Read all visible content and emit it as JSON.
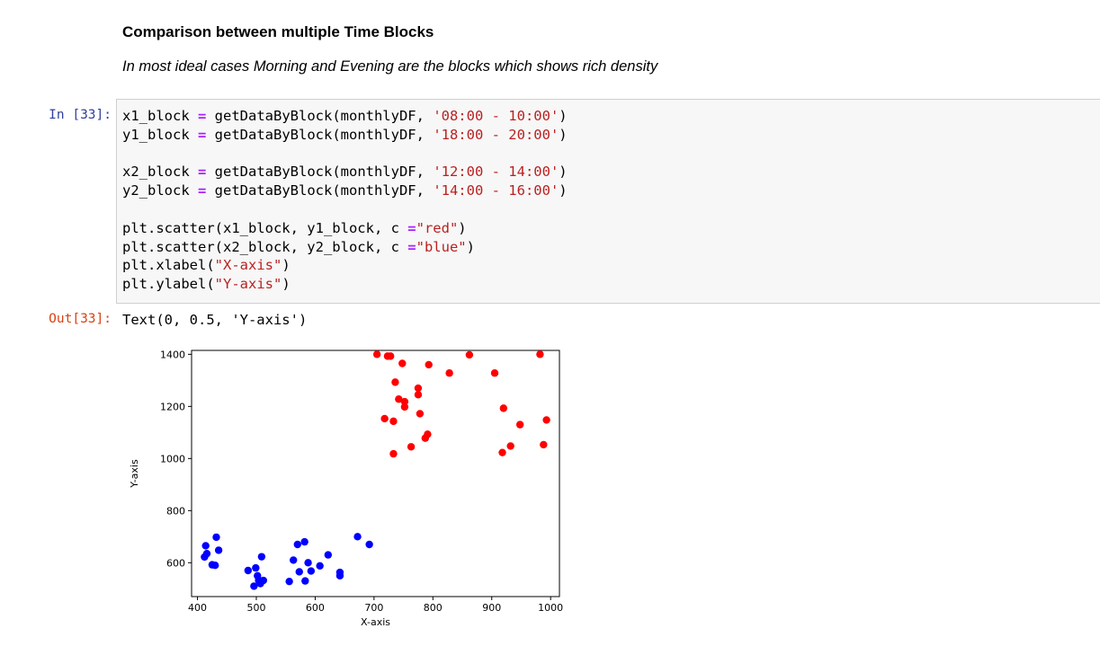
{
  "markdown": {
    "heading": "Comparison between multiple Time Blocks",
    "subtitle": "In most ideal cases Morning and Evening are the blocks which shows rich density"
  },
  "cell": {
    "in_prompt": "In [33]:",
    "out_prompt": "Out[33]:",
    "code_lines": [
      [
        {
          "t": "x1_block "
        },
        {
          "t": "=",
          "c": "kw"
        },
        {
          "t": " getDataByBlock(monthlyDF, "
        },
        {
          "t": "'08:00 - 10:00'",
          "c": "st"
        },
        {
          "t": ")"
        }
      ],
      [
        {
          "t": "y1_block "
        },
        {
          "t": "=",
          "c": "kw"
        },
        {
          "t": " getDataByBlock(monthlyDF, "
        },
        {
          "t": "'18:00 - 20:00'",
          "c": "st"
        },
        {
          "t": ")"
        }
      ],
      [],
      [
        {
          "t": "x2_block "
        },
        {
          "t": "=",
          "c": "kw"
        },
        {
          "t": " getDataByBlock(monthlyDF, "
        },
        {
          "t": "'12:00 - 14:00'",
          "c": "st"
        },
        {
          "t": ")"
        }
      ],
      [
        {
          "t": "y2_block "
        },
        {
          "t": "=",
          "c": "kw"
        },
        {
          "t": " getDataByBlock(monthlyDF, "
        },
        {
          "t": "'14:00 - 16:00'",
          "c": "st"
        },
        {
          "t": ")"
        }
      ],
      [],
      [
        {
          "t": "plt.scatter(x1_block, y1_block, c "
        },
        {
          "t": "=",
          "c": "kw"
        },
        {
          "t": "\"red\"",
          "c": "st"
        },
        {
          "t": ")"
        }
      ],
      [
        {
          "t": "plt.scatter(x2_block, y2_block, c "
        },
        {
          "t": "=",
          "c": "kw"
        },
        {
          "t": "\"blue\"",
          "c": "st"
        },
        {
          "t": ")"
        }
      ],
      [
        {
          "t": "plt.xlabel("
        },
        {
          "t": "\"X-axis\"",
          "c": "st"
        },
        {
          "t": ")"
        }
      ],
      [
        {
          "t": "plt.ylabel("
        },
        {
          "t": "\"Y-axis\"",
          "c": "st"
        },
        {
          "t": ")"
        }
      ]
    ],
    "output_text": "Text(0, 0.5, 'Y-axis')"
  },
  "chart_data": {
    "type": "scatter",
    "xlabel": "X-axis",
    "ylabel": "Y-axis",
    "xlim": [
      390,
      1015
    ],
    "ylim": [
      470,
      1415
    ],
    "xticks": [
      400,
      500,
      600,
      700,
      800,
      900,
      1000
    ],
    "yticks": [
      600,
      800,
      1000,
      1200,
      1400
    ],
    "grid": false,
    "series": [
      {
        "color": "#ff0000",
        "x": [
          705,
          723,
          728,
          748,
          793,
          862,
          982,
          736,
          775,
          775,
          828,
          905,
          742,
          752,
          752,
          718,
          733,
          778,
          920,
          948,
          993,
          791,
          787,
          763,
          932,
          988,
          733,
          918
        ],
        "y": [
          1400,
          1393,
          1393,
          1365,
          1360,
          1398,
          1400,
          1293,
          1270,
          1245,
          1328,
          1328,
          1228,
          1218,
          1198,
          1153,
          1143,
          1172,
          1193,
          1130,
          1148,
          1093,
          1078,
          1045,
          1048,
          1053,
          1018,
          1023
        ]
      },
      {
        "color": "#0000ff",
        "x": [
          432,
          414,
          436,
          412,
          416,
          425,
          430,
          486,
          499,
          509,
          502,
          504,
          512,
          496,
          507,
          570,
          582,
          563,
          588,
          622,
          608,
          573,
          593,
          642,
          642,
          556,
          583,
          672,
          692
        ],
        "y": [
          698,
          665,
          648,
          622,
          635,
          592,
          590,
          570,
          580,
          623,
          550,
          532,
          532,
          510,
          520,
          670,
          680,
          610,
          600,
          630,
          588,
          565,
          568,
          563,
          550,
          528,
          530,
          700,
          670
        ]
      }
    ]
  }
}
